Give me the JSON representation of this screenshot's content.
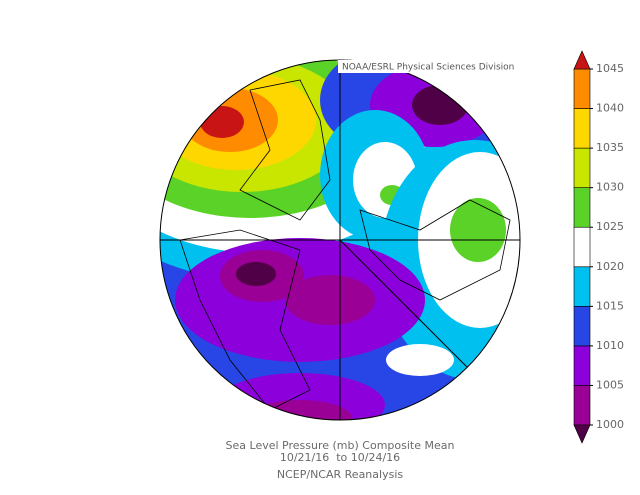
{
  "header": {
    "credit": "NOAA/ESRL Physical Sciences Division"
  },
  "caption": {
    "title": "Sea Level Pressure (mb) Composite Mean",
    "dates": "10/21/16  to 10/24/16",
    "source": "NCEP/NCAR Reanalysis"
  },
  "colorbar": {
    "levels": [
      1000,
      1005,
      1010,
      1015,
      1020,
      1025,
      1030,
      1035,
      1040,
      1045
    ],
    "colors": [
      "#500046",
      "#9a0096",
      "#8c00dc",
      "#2846e6",
      "#00c0f0",
      "#ffffff",
      "#5ad228",
      "#c8e600",
      "#ffd700",
      "#ff8c00",
      "#c81414"
    ]
  }
}
